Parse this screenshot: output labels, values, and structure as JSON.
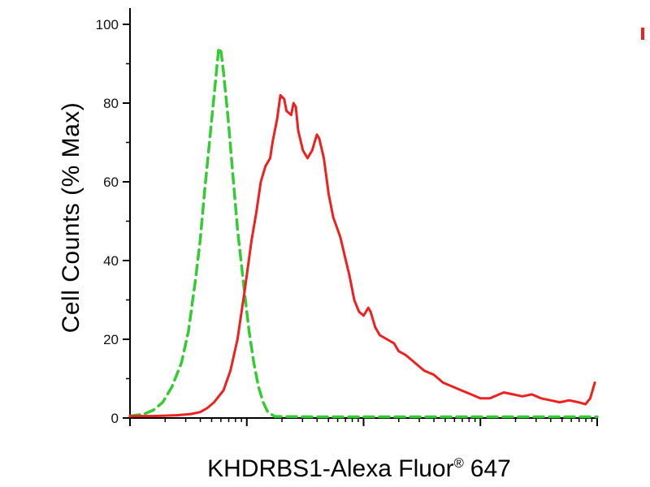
{
  "figure": {
    "ylabel": "Cell Counts (% Max)",
    "xlabel_main": "KHDRBS1-Alexa Fluor",
    "xlabel_sup": "®",
    "xlabel_tail": "647"
  },
  "colors": {
    "green_curve": "#33cc33",
    "red_curve": "#ee2020",
    "axis": "#000000"
  },
  "chart_data": {
    "type": "line",
    "subtype": "flow-cytometry-histogram",
    "title": "",
    "ylabel": "Cell Counts (% Max)",
    "xlabel": "KHDRBS1-Alexa Fluor® 647",
    "ylim": [
      0,
      100
    ],
    "yticks": [
      0,
      20,
      40,
      60,
      80,
      100
    ],
    "y_minor_ticks": [
      10,
      30,
      50,
      70,
      90
    ],
    "x_axis": {
      "scale": "log",
      "decades": 4,
      "tick_labels_visible": false
    },
    "grid": false,
    "legend": "none",
    "series": [
      {
        "name": "green-dashed",
        "color": "#33cc33",
        "style": "dashed",
        "width": 3.5,
        "points": [
          [
            0.0,
            0.5
          ],
          [
            0.03,
            1
          ],
          [
            0.05,
            2
          ],
          [
            0.07,
            4
          ],
          [
            0.09,
            8
          ],
          [
            0.11,
            14
          ],
          [
            0.125,
            22
          ],
          [
            0.14,
            35
          ],
          [
            0.15,
            45
          ],
          [
            0.16,
            58
          ],
          [
            0.17,
            70
          ],
          [
            0.18,
            82
          ],
          [
            0.19,
            94
          ],
          [
            0.195,
            93
          ],
          [
            0.2,
            88
          ],
          [
            0.21,
            76
          ],
          [
            0.22,
            62
          ],
          [
            0.23,
            48
          ],
          [
            0.245,
            32
          ],
          [
            0.255,
            22
          ],
          [
            0.265,
            14
          ],
          [
            0.275,
            8
          ],
          [
            0.285,
            4
          ],
          [
            0.295,
            1.5
          ],
          [
            0.31,
            0.4
          ],
          [
            0.4,
            0.3
          ],
          [
            0.55,
            0.3
          ],
          [
            0.7,
            0.3
          ],
          [
            0.85,
            0.3
          ],
          [
            1.0,
            0.3
          ]
        ]
      },
      {
        "name": "red-solid",
        "color": "#ee2020",
        "style": "solid",
        "width": 3,
        "points": [
          [
            0.0,
            0.5
          ],
          [
            0.05,
            0.5
          ],
          [
            0.1,
            0.7
          ],
          [
            0.13,
            1
          ],
          [
            0.15,
            1.5
          ],
          [
            0.165,
            2.5
          ],
          [
            0.18,
            4
          ],
          [
            0.2,
            7
          ],
          [
            0.215,
            12
          ],
          [
            0.23,
            20
          ],
          [
            0.245,
            32
          ],
          [
            0.26,
            45
          ],
          [
            0.27,
            52
          ],
          [
            0.28,
            60
          ],
          [
            0.29,
            64
          ],
          [
            0.3,
            66
          ],
          [
            0.305,
            70
          ],
          [
            0.315,
            76
          ],
          [
            0.322,
            82
          ],
          [
            0.33,
            81
          ],
          [
            0.335,
            78
          ],
          [
            0.345,
            77
          ],
          [
            0.35,
            80
          ],
          [
            0.355,
            79
          ],
          [
            0.36,
            73
          ],
          [
            0.37,
            68
          ],
          [
            0.38,
            66
          ],
          [
            0.39,
            68
          ],
          [
            0.395,
            70
          ],
          [
            0.4,
            72
          ],
          [
            0.405,
            71
          ],
          [
            0.415,
            66
          ],
          [
            0.425,
            57
          ],
          [
            0.435,
            51
          ],
          [
            0.45,
            46
          ],
          [
            0.46,
            41
          ],
          [
            0.47,
            36
          ],
          [
            0.48,
            30
          ],
          [
            0.49,
            27
          ],
          [
            0.5,
            26
          ],
          [
            0.51,
            28
          ],
          [
            0.515,
            27
          ],
          [
            0.525,
            23
          ],
          [
            0.535,
            21
          ],
          [
            0.55,
            20
          ],
          [
            0.565,
            19
          ],
          [
            0.575,
            17
          ],
          [
            0.59,
            16
          ],
          [
            0.61,
            14
          ],
          [
            0.63,
            12
          ],
          [
            0.65,
            11
          ],
          [
            0.67,
            9
          ],
          [
            0.69,
            8
          ],
          [
            0.71,
            7
          ],
          [
            0.73,
            6
          ],
          [
            0.75,
            5
          ],
          [
            0.77,
            5
          ],
          [
            0.79,
            6
          ],
          [
            0.8,
            6.5
          ],
          [
            0.82,
            6
          ],
          [
            0.84,
            5.5
          ],
          [
            0.86,
            6
          ],
          [
            0.88,
            5
          ],
          [
            0.9,
            4.5
          ],
          [
            0.92,
            4
          ],
          [
            0.94,
            4.5
          ],
          [
            0.96,
            4
          ],
          [
            0.975,
            3.5
          ],
          [
            0.985,
            5
          ],
          [
            0.995,
            9
          ]
        ]
      }
    ]
  }
}
